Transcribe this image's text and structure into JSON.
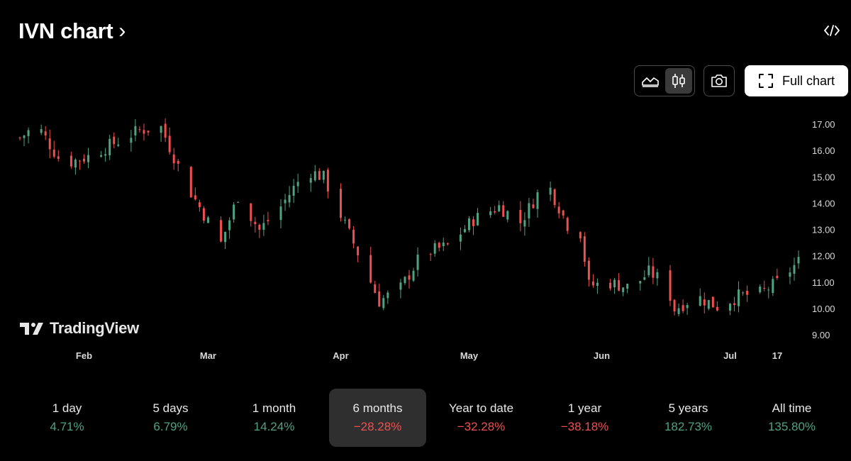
{
  "header": {
    "title": "IVN chart",
    "title_chevron": "›"
  },
  "toolbar": {
    "embed_icon": "code-icon",
    "chart_types": [
      {
        "name": "area",
        "icon": "area-chart-icon",
        "active": false
      },
      {
        "name": "candles",
        "icon": "candlestick-icon",
        "active": true
      }
    ],
    "snapshot_icon": "camera-icon",
    "full_chart_label": "Full chart",
    "full_chart_icon": "expand-icon"
  },
  "branding": {
    "logo_text": "TradingView"
  },
  "colors": {
    "up": "#4fa381",
    "down": "#ef4f4f",
    "background": "#000000",
    "text": "#d8d8d8"
  },
  "chart_data": {
    "type": "candlestick",
    "y_tick_labels": [
      "9.00",
      "10.00",
      "11.00",
      "12.00",
      "13.00",
      "14.00",
      "15.00",
      "16.00",
      "17.00"
    ],
    "ylim": [
      8.5,
      17.4
    ],
    "x_tick_labels": [
      "Feb",
      "Mar",
      "Apr",
      "May",
      "Jun",
      "Jul",
      "17"
    ],
    "grid": false,
    "x_range_days": [
      "2024-01-17",
      "2024-07-17"
    ],
    "close_keypoints": [
      {
        "date": "2024-01-17",
        "close": 16.5
      },
      {
        "date": "2024-01-21",
        "close": 17.0
      },
      {
        "date": "2024-01-27",
        "close": 15.5
      },
      {
        "date": "2024-02-02",
        "close": 15.8
      },
      {
        "date": "2024-02-08",
        "close": 16.3
      },
      {
        "date": "2024-02-14",
        "close": 16.8
      },
      {
        "date": "2024-02-19",
        "close": 16.9
      },
      {
        "date": "2024-02-25",
        "close": 14.7
      },
      {
        "date": "2024-03-04",
        "close": 12.5
      },
      {
        "date": "2024-03-08",
        "close": 14.3
      },
      {
        "date": "2024-03-13",
        "close": 13.0
      },
      {
        "date": "2024-03-18",
        "close": 13.9
      },
      {
        "date": "2024-03-24",
        "close": 15.3
      },
      {
        "date": "2024-03-28",
        "close": 15.0
      },
      {
        "date": "2024-04-04",
        "close": 12.5
      },
      {
        "date": "2024-04-10",
        "close": 10.3
      },
      {
        "date": "2024-04-15",
        "close": 10.8
      },
      {
        "date": "2024-04-20",
        "close": 12.1
      },
      {
        "date": "2024-04-26",
        "close": 12.4
      },
      {
        "date": "2024-05-02",
        "close": 13.4
      },
      {
        "date": "2024-05-08",
        "close": 13.9
      },
      {
        "date": "2024-05-13",
        "close": 13.3
      },
      {
        "date": "2024-05-19",
        "close": 14.9
      },
      {
        "date": "2024-05-24",
        "close": 13.2
      },
      {
        "date": "2024-05-27",
        "close": 12.9
      },
      {
        "date": "2024-05-29",
        "close": 10.9
      },
      {
        "date": "2024-06-03",
        "close": 11.0
      },
      {
        "date": "2024-06-08",
        "close": 10.8
      },
      {
        "date": "2024-06-12",
        "close": 11.4
      },
      {
        "date": "2024-06-16",
        "close": 11.0
      },
      {
        "date": "2024-06-18",
        "close": 10.0
      },
      {
        "date": "2024-06-23",
        "close": 10.5
      },
      {
        "date": "2024-06-28",
        "close": 10.1
      },
      {
        "date": "2024-07-03",
        "close": 10.5
      },
      {
        "date": "2024-07-08",
        "close": 10.6
      },
      {
        "date": "2024-07-12",
        "close": 11.0
      },
      {
        "date": "2024-07-17",
        "close": 11.8
      }
    ]
  },
  "periods": [
    {
      "label": "1 day",
      "value": "4.71%",
      "direction": "up",
      "active": false
    },
    {
      "label": "5 days",
      "value": "6.79%",
      "direction": "up",
      "active": false
    },
    {
      "label": "1 month",
      "value": "14.24%",
      "direction": "up",
      "active": false
    },
    {
      "label": "6 months",
      "value": "−28.28%",
      "direction": "down",
      "active": true
    },
    {
      "label": "Year to date",
      "value": "−32.28%",
      "direction": "down",
      "active": false
    },
    {
      "label": "1 year",
      "value": "−38.18%",
      "direction": "down",
      "active": false
    },
    {
      "label": "5 years",
      "value": "182.73%",
      "direction": "up",
      "active": false
    },
    {
      "label": "All time",
      "value": "135.80%",
      "direction": "up",
      "active": false
    }
  ]
}
